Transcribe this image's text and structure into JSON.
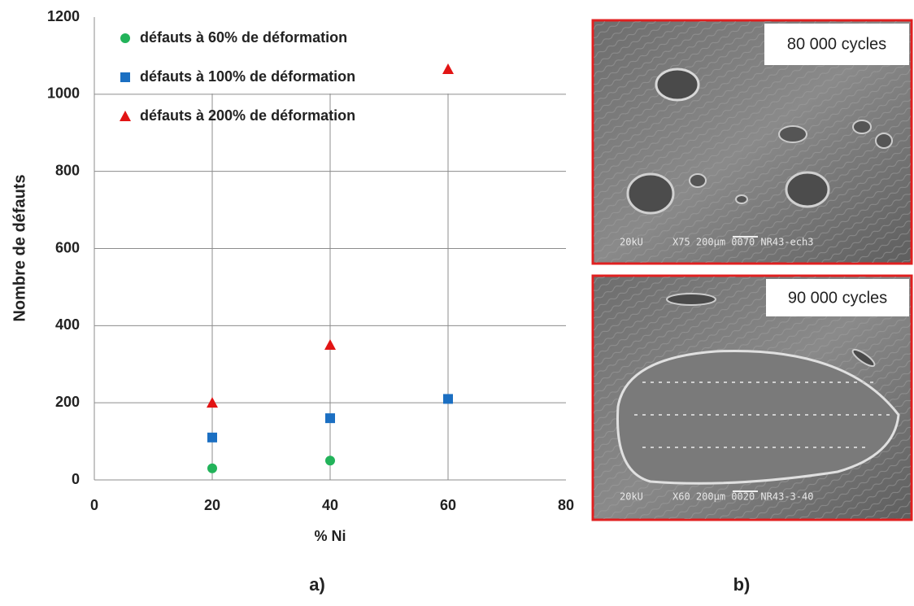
{
  "chart_data": {
    "type": "scatter",
    "ylabel": "Nombre de défauts",
    "xlabel": "% Ni",
    "xlim": [
      0,
      80
    ],
    "xticks": [
      0,
      20,
      40,
      60,
      80
    ],
    "ylim": [
      0,
      1200
    ],
    "yticks": [
      0,
      200,
      400,
      600,
      800,
      1000,
      1200
    ],
    "grid": true,
    "legend": "upper left",
    "series": [
      {
        "name": "défauts à 60% de déformation",
        "color": "#22b35a",
        "marker": "circle",
        "x": [
          20,
          40
        ],
        "values": [
          30,
          50
        ]
      },
      {
        "name": "défauts à 100% de déformation",
        "color": "#1b6fc2",
        "marker": "square",
        "x": [
          20,
          40,
          60
        ],
        "values": [
          110,
          160,
          210
        ]
      },
      {
        "name": "défauts à 200% de déformation",
        "color": "#e21414",
        "marker": "triangle",
        "x": [
          20,
          40,
          60
        ],
        "values": [
          200,
          350,
          1065
        ]
      }
    ]
  },
  "labels": {
    "a": "a)",
    "b": "b)"
  },
  "panels": [
    {
      "caption": "80 000 cycles",
      "info": "20kU     X75 200μm 0070 NR43-ech3"
    },
    {
      "caption": "90 000 cycles",
      "info": "20kU     X60 200μm 0020 NR43-3-40"
    }
  ]
}
